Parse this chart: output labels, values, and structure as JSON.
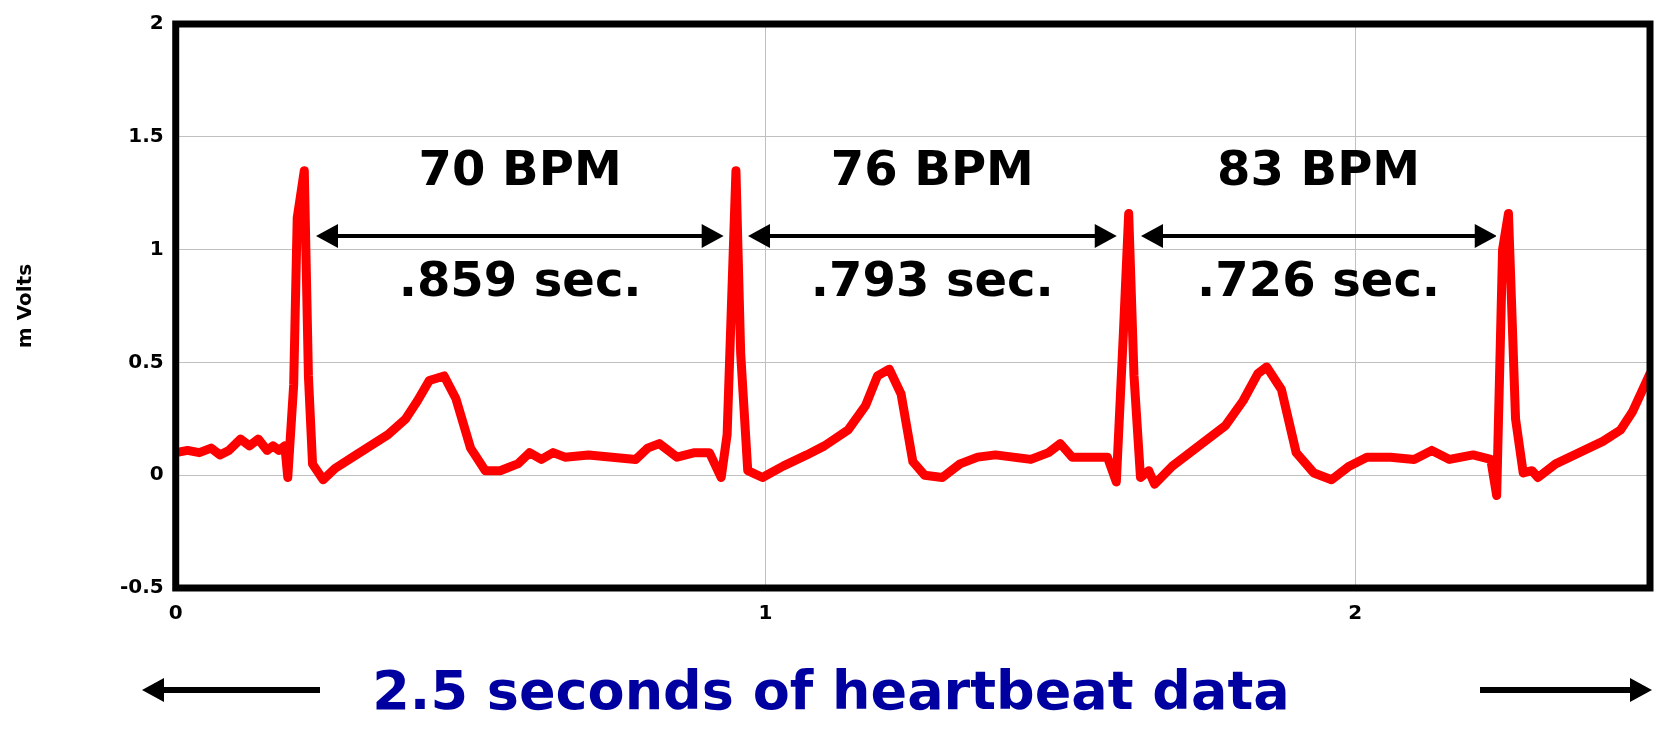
{
  "chart_data": {
    "type": "line",
    "xlabel": "2.5 seconds of heartbeat data",
    "ylabel": "m Volts",
    "xlim": [
      0,
      2.5
    ],
    "xticks": [
      0,
      1,
      2
    ],
    "ylim": [
      -0.5,
      2
    ],
    "yticks": [
      -0.5,
      0,
      0.5,
      1,
      1.5,
      2
    ],
    "grid": true,
    "legend": false,
    "marker": "none",
    "line_style": "solid",
    "annotations": [
      "70 BPM",
      ".859 sec.",
      "76 BPM",
      ".793 sec.",
      "83 BPM",
      ".726 sec."
    ],
    "series": [
      {
        "color": "#ff0000",
        "x": [
          0,
          0.02,
          0.04,
          0.06,
          0.075,
          0.09,
          0.11,
          0.125,
          0.14,
          0.155,
          0.165,
          0.175,
          0.185,
          0.19,
          0.2,
          0.206,
          0.218,
          0.225,
          0.232,
          0.25,
          0.27,
          0.3,
          0.33,
          0.36,
          0.39,
          0.41,
          0.43,
          0.455,
          0.475,
          0.5,
          0.525,
          0.55,
          0.58,
          0.6,
          0.62,
          0.64,
          0.66,
          0.7,
          0.74,
          0.78,
          0.8,
          0.82,
          0.85,
          0.88,
          0.905,
          0.925,
          0.935,
          0.95,
          0.958,
          0.97,
          0.995,
          1.03,
          1.07,
          1.1,
          1.14,
          1.17,
          1.19,
          1.21,
          1.23,
          1.25,
          1.27,
          1.3,
          1.33,
          1.36,
          1.39,
          1.42,
          1.45,
          1.48,
          1.5,
          1.52,
          1.55,
          1.58,
          1.595,
          1.607,
          1.616,
          1.625,
          1.636,
          1.65,
          1.66,
          1.69,
          1.72,
          1.75,
          1.78,
          1.81,
          1.835,
          1.85,
          1.875,
          1.9,
          1.93,
          1.96,
          1.99,
          2.02,
          2.06,
          2.1,
          2.13,
          2.16,
          2.2,
          2.23,
          2.24,
          2.25,
          2.26,
          2.272,
          2.285,
          2.3,
          2.31,
          2.34,
          2.38,
          2.42,
          2.45,
          2.47,
          2.5
        ],
        "values": [
          0.1,
          0.11,
          0.1,
          0.12,
          0.09,
          0.11,
          0.16,
          0.13,
          0.16,
          0.11,
          0.13,
          0.11,
          0.13,
          -0.01,
          0.4,
          1.14,
          1.35,
          0.44,
          0.05,
          -0.02,
          0.03,
          0.08,
          0.13,
          0.18,
          0.25,
          0.33,
          0.42,
          0.44,
          0.34,
          0.12,
          0.02,
          0.02,
          0.05,
          0.1,
          0.07,
          0.1,
          0.08,
          0.09,
          0.08,
          0.07,
          0.12,
          0.14,
          0.08,
          0.1,
          0.1,
          -0.01,
          0.18,
          1.35,
          0.54,
          0.02,
          -0.01,
          0.04,
          0.09,
          0.13,
          0.2,
          0.31,
          0.44,
          0.47,
          0.36,
          0.06,
          0.0,
          -0.01,
          0.05,
          0.08,
          0.09,
          0.08,
          0.07,
          0.1,
          0.14,
          0.08,
          0.08,
          0.08,
          -0.03,
          0.63,
          1.16,
          0.44,
          -0.01,
          0.02,
          -0.04,
          0.04,
          0.1,
          0.16,
          0.22,
          0.33,
          0.45,
          0.48,
          0.38,
          0.1,
          0.01,
          -0.02,
          0.04,
          0.08,
          0.08,
          0.07,
          0.11,
          0.07,
          0.09,
          0.07,
          -0.09,
          1.0,
          1.16,
          0.25,
          0.01,
          0.02,
          -0.01,
          0.05,
          0.1,
          0.15,
          0.2,
          0.28,
          0.45
        ]
      }
    ]
  }
}
